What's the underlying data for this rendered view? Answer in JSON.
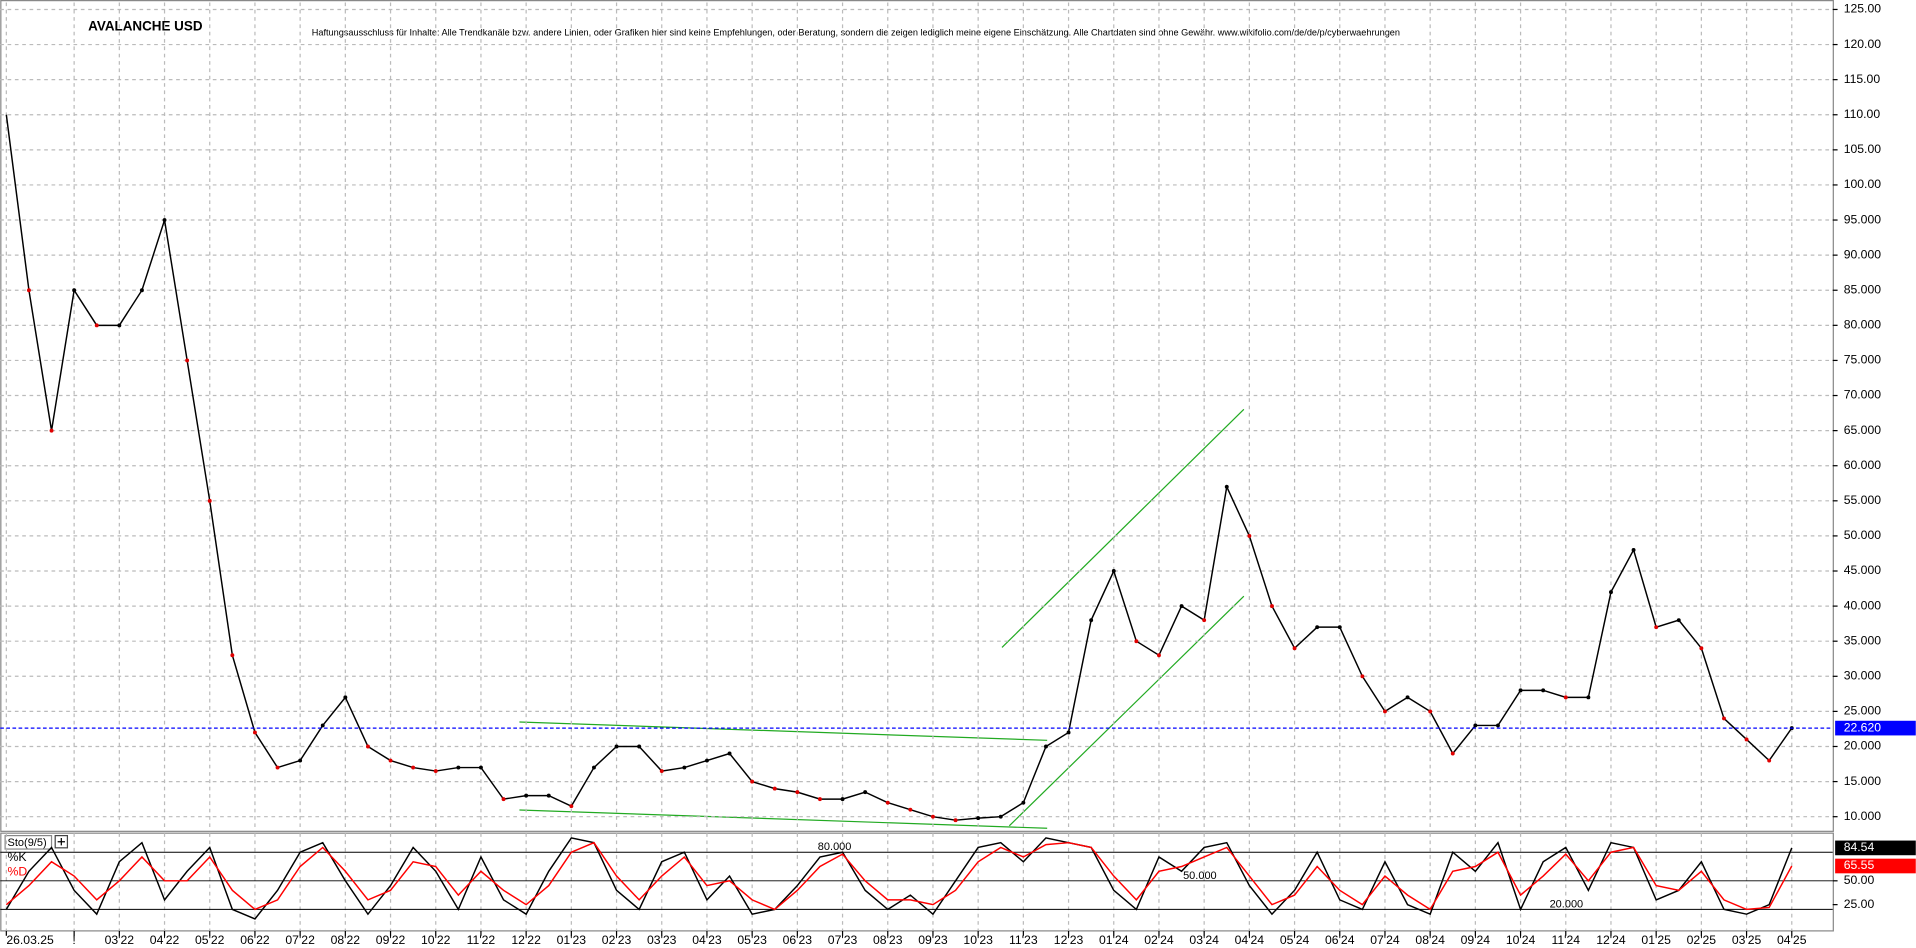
{
  "chart_data": [
    {
      "type": "line",
      "title": "AVALANCHE USD",
      "subtitle": "Haftungsausschluss für Inhalte: Alle Trendkanäle bzw. andere Linien, oder Grafiken hier sind keine Empfehlungen, oder Beratung, sondern die zeigen lediglich meine eigene Einschätzung. Alle Chartdaten sind ohne Gewähr. www.wikifolio.com/de/de/p/cyberwaehrungen",
      "categories": [
        "26.03.25",
        null,
        null,
        "!",
        null,
        "03'22",
        null,
        "04'22",
        null,
        "05'22",
        null,
        "06'22",
        null,
        "07'22",
        null,
        "08'22",
        null,
        "09'22",
        null,
        "10'22",
        null,
        "11'22",
        null,
        "12'22",
        null,
        "01'23",
        null,
        "02'23",
        null,
        "03'23",
        null,
        "04'23",
        null,
        "05'23",
        null,
        "06'23",
        null,
        "07'23",
        null,
        "08'23",
        null,
        "09'23",
        null,
        "10'23",
        null,
        "11'23",
        null,
        "12'23",
        null,
        "01'24",
        null,
        "02'24",
        null,
        "03'24",
        null,
        "04'24",
        null,
        "05'24",
        null,
        "06'24",
        null,
        "07'24",
        null,
        "08'24",
        null,
        "09'24",
        null,
        "10'24",
        null,
        "11'24",
        null,
        "12'24",
        null,
        "01'25",
        null,
        "02'25",
        null,
        "03'25",
        null,
        "04'25"
      ],
      "values": [
        110,
        85,
        65,
        85,
        80,
        80,
        85,
        95,
        75,
        55,
        33,
        22,
        17,
        18,
        23,
        27,
        20,
        18,
        17,
        16.5,
        17,
        17,
        12.5,
        13,
        13,
        11.5,
        17,
        20,
        20,
        16.5,
        17,
        18,
        19,
        15,
        14,
        13.5,
        12.5,
        12.5,
        13.5,
        12,
        11,
        10,
        9.5,
        9.8,
        10,
        12,
        20,
        22,
        38,
        45,
        35,
        33,
        40,
        38,
        57,
        50,
        40,
        34,
        37,
        37,
        30,
        25,
        27,
        25,
        19,
        23,
        23,
        28,
        28,
        27,
        27,
        42,
        48,
        37,
        38,
        34,
        24,
        21,
        18,
        22.62
      ],
      "color": "#000000",
      "ylim": [
        8,
        126
      ],
      "yticks": [
        {
          "value": 10,
          "label": "10.000"
        },
        {
          "value": 15,
          "label": "15.000"
        },
        {
          "value": 20,
          "label": "20.000"
        },
        {
          "value": 25,
          "label": "25.000"
        },
        {
          "value": 30,
          "label": "30.000"
        },
        {
          "value": 35,
          "label": "35.000"
        },
        {
          "value": 40,
          "label": "40.000"
        },
        {
          "value": 45,
          "label": "45.000"
        },
        {
          "value": 50,
          "label": "50.000"
        },
        {
          "value": 55,
          "label": "55.000"
        },
        {
          "value": 60,
          "label": "60.000"
        },
        {
          "value": 65,
          "label": "65.000"
        },
        {
          "value": 70,
          "label": "70.000"
        },
        {
          "value": 75,
          "label": "75.000"
        },
        {
          "value": 80,
          "label": "80.000"
        },
        {
          "value": 85,
          "label": "85.000"
        },
        {
          "value": 90,
          "label": "90.000"
        },
        {
          "value": 95,
          "label": "95.000"
        },
        {
          "value": 100,
          "label": "100.00"
        },
        {
          "value": 105,
          "label": "105.00"
        },
        {
          "value": 110,
          "label": "110.00"
        },
        {
          "value": 115,
          "label": "115.00"
        },
        {
          "value": 120,
          "label": "120.00"
        },
        {
          "value": 125,
          "label": "125.00"
        }
      ],
      "grid": true,
      "current": {
        "value": 22.62,
        "label": "22.620"
      },
      "current_color": "#0000ff"
    },
    {
      "type": "line",
      "legend": "Sto(9/5)",
      "series": [
        {
          "name": "%K",
          "color": "#000000",
          "values": [
            20,
            60,
            85,
            40,
            15,
            70,
            90,
            30,
            60,
            85,
            20,
            10,
            40,
            80,
            90,
            50,
            15,
            45,
            85,
            60,
            20,
            75,
            30,
            15,
            60,
            95,
            90,
            40,
            20,
            70,
            80,
            30,
            55,
            15,
            20,
            45,
            75,
            80,
            40,
            20,
            35,
            15,
            50,
            85,
            90,
            70,
            95,
            90,
            85,
            40,
            20,
            75,
            60,
            85,
            90,
            45,
            15,
            40,
            80,
            30,
            20,
            70,
            25,
            15,
            80,
            60,
            90,
            20,
            70,
            85,
            40,
            90,
            85,
            30,
            40,
            70,
            20,
            15,
            25,
            84.54
          ]
        },
        {
          "name": "%D",
          "color": "#ff0000",
          "values": [
            25,
            45,
            70,
            55,
            30,
            50,
            75,
            50,
            50,
            75,
            40,
            20,
            30,
            65,
            85,
            60,
            30,
            40,
            70,
            65,
            35,
            60,
            40,
            25,
            45,
            80,
            90,
            55,
            30,
            55,
            75,
            45,
            50,
            30,
            20,
            40,
            65,
            78,
            50,
            30,
            30,
            25,
            40,
            70,
            85,
            75,
            88,
            90,
            85,
            55,
            30,
            60,
            65,
            75,
            85,
            55,
            25,
            35,
            65,
            40,
            25,
            55,
            35,
            20,
            60,
            65,
            80,
            35,
            55,
            78,
            50,
            80,
            85,
            45,
            40,
            60,
            30,
            20,
            22,
            65.55
          ]
        }
      ],
      "ylim": [
        0,
        100
      ],
      "yticks": [
        {
          "value": 50,
          "label": "50.00"
        },
        {
          "value": 25,
          "label": "25.00"
        }
      ],
      "levels": [
        {
          "value": 80,
          "label": "80.000"
        },
        {
          "value": 50,
          "label": "50.000"
        },
        {
          "value": 20,
          "label": "20.000"
        }
      ]
    }
  ]
}
